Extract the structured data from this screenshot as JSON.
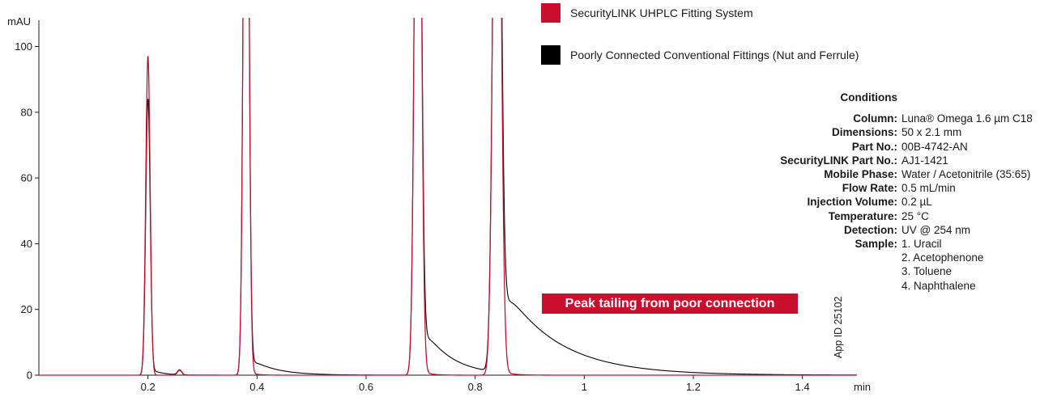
{
  "chart_data": {
    "type": "line",
    "title": "",
    "xlabel": "min",
    "ylabel": "mAU",
    "xlim": [
      0,
      1.5
    ],
    "ylim": [
      0,
      108
    ],
    "x_ticks": [
      0.2,
      0.4,
      0.6,
      0.8,
      1,
      1.2,
      1.4
    ],
    "y_ticks": [
      0,
      20,
      40,
      60,
      80,
      100
    ],
    "grid": false,
    "legend_position": "top-right",
    "series": [
      {
        "name": "SecurityLINK UHPLC Fitting System",
        "color": "#c8102e",
        "peaks": [
          {
            "rt": 0.2,
            "height": 97,
            "width": 0.004,
            "tail_amp": 0,
            "tail_tau": 0.02
          },
          {
            "rt": 0.258,
            "height": 1.5,
            "width": 0.004,
            "tail_amp": 0,
            "tail_tau": 0.02
          },
          {
            "rt": 0.38,
            "height": 250,
            "width": 0.0045,
            "tail_amp": 1.5,
            "tail_tau": 0.012
          },
          {
            "rt": 0.695,
            "height": 250,
            "width": 0.0055,
            "tail_amp": 2,
            "tail_tau": 0.015
          },
          {
            "rt": 0.84,
            "height": 250,
            "width": 0.0065,
            "tail_amp": 2,
            "tail_tau": 0.018
          }
        ]
      },
      {
        "name": "Poorly Connected Conventional Fittings (Nut and Ferrule)",
        "color": "#000000",
        "peaks": [
          {
            "rt": 0.2,
            "height": 84,
            "width": 0.004,
            "tail_amp": 2.5,
            "tail_tau": 0.02
          },
          {
            "rt": 0.258,
            "height": 1.5,
            "width": 0.004,
            "tail_amp": 0,
            "tail_tau": 0.02
          },
          {
            "rt": 0.38,
            "height": 250,
            "width": 0.0045,
            "tail_amp": 6,
            "tail_tau": 0.045
          },
          {
            "rt": 0.695,
            "height": 250,
            "width": 0.0055,
            "tail_amp": 18,
            "tail_tau": 0.05
          },
          {
            "rt": 0.84,
            "height": 250,
            "width": 0.0065,
            "tail_amp": 30,
            "tail_tau": 0.1
          }
        ]
      }
    ]
  },
  "conditions": {
    "title": "Conditions",
    "rows": [
      {
        "label": "Column:",
        "value": "Luna® Omega 1.6 µm C18"
      },
      {
        "label": "Dimensions:",
        "value": "50 x 2.1 mm"
      },
      {
        "label": "Part No.:",
        "value": "00B-4742-AN"
      },
      {
        "label": "SecurityLINK Part No.:",
        "value": "AJ1-1421"
      },
      {
        "label": "Mobile Phase:",
        "value": "Water / Acetonitrile (35:65)"
      },
      {
        "label": "Flow Rate:",
        "value": "0.5 mL/min"
      },
      {
        "label": "Injection Volume:",
        "value": "0.2 µL"
      },
      {
        "label": "Temperature:",
        "value": "25 °C"
      },
      {
        "label": "Detection:",
        "value": "UV @ 254 nm"
      }
    ],
    "sample_label": "Sample:",
    "samples": [
      "1. Uracil",
      "2. Acetophenone",
      "3. Toluene",
      "4. Naphthalene"
    ]
  },
  "annotation": "Peak tailing from poor connection",
  "app_id": "App ID 25102"
}
